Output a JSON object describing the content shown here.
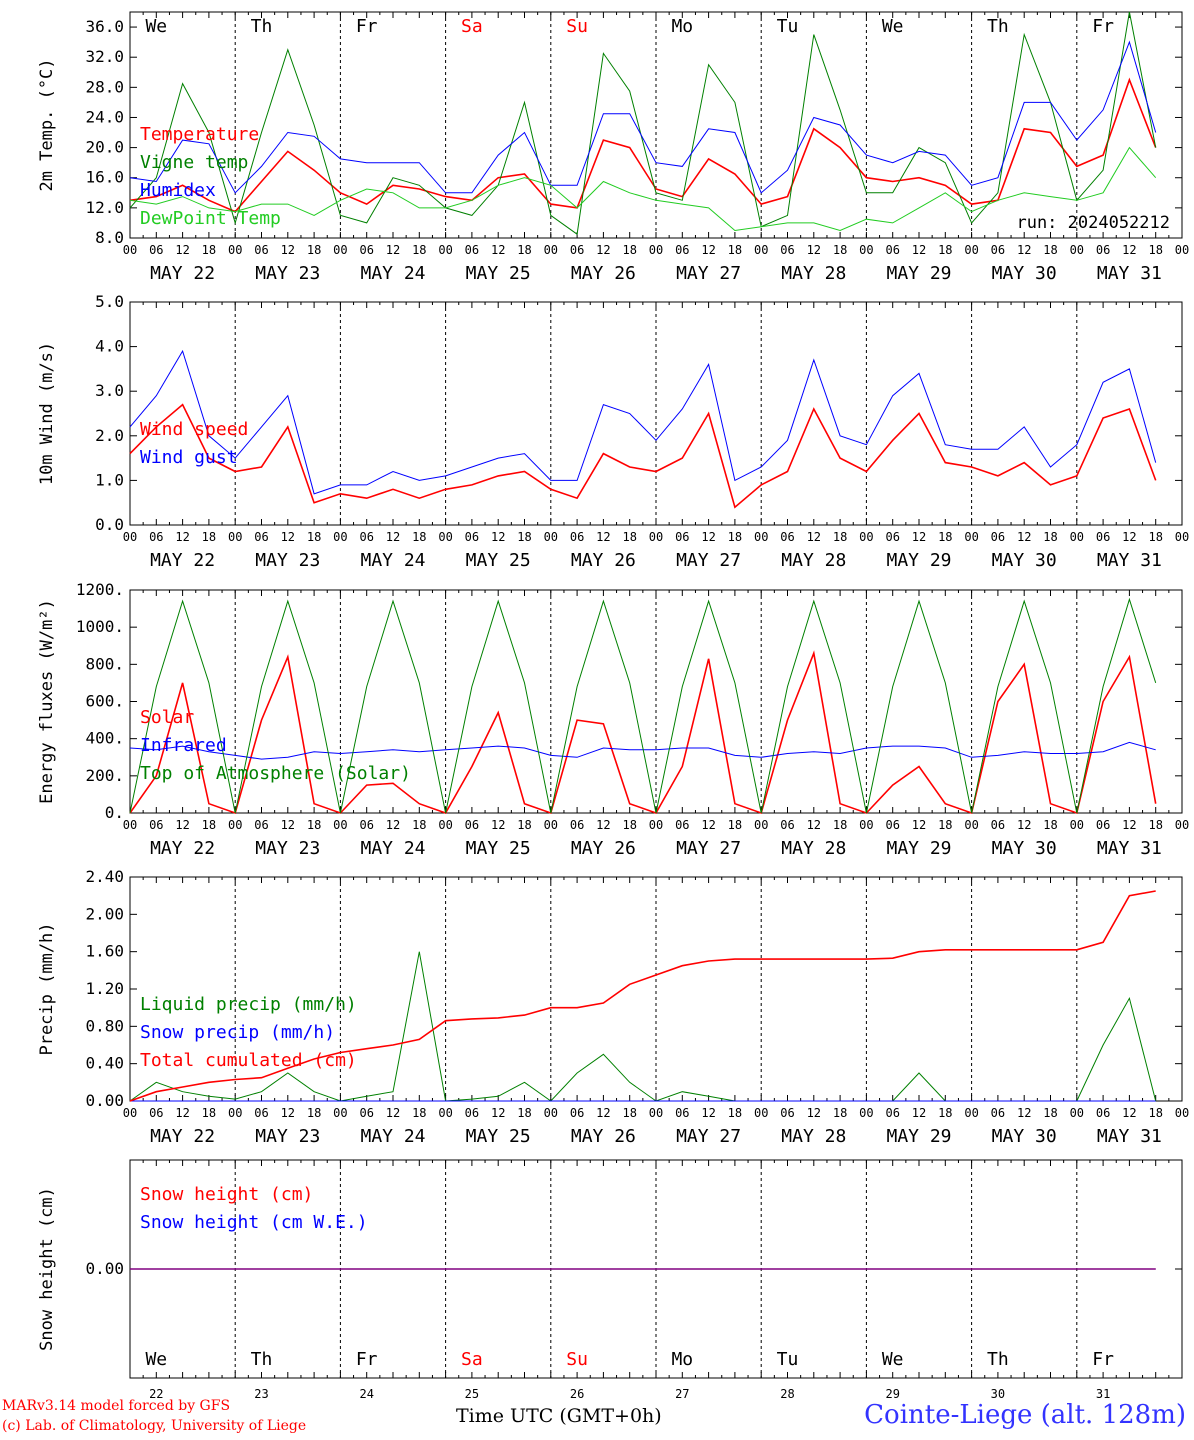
{
  "chart_data": [
    {
      "type": "line",
      "ylabel": "2m Temp. (°C)",
      "ylim": [
        8,
        38
      ],
      "yticks": [
        "8.0",
        "12.0",
        "16.0",
        "20.0",
        "24.0",
        "28.0",
        "32.0",
        "36.0"
      ],
      "annotation": "run: 2024052212",
      "x_hours": [
        0,
        6,
        12,
        18,
        24,
        30,
        36,
        42,
        48,
        54,
        60,
        66,
        72,
        78,
        84,
        90,
        96,
        102,
        108,
        114,
        120,
        126,
        132,
        138,
        144,
        150,
        156,
        162,
        168,
        174,
        180,
        186,
        192,
        198,
        204,
        210,
        216,
        222,
        228,
        234
      ],
      "series": [
        {
          "name": "Temperature",
          "color": "#ff0000",
          "values": [
            13,
            13.5,
            15,
            13,
            11.5,
            15.5,
            19.5,
            17,
            14,
            12.5,
            15,
            14.5,
            13.5,
            13,
            16,
            16.5,
            12.5,
            12,
            21,
            20,
            14.5,
            13.5,
            18.5,
            16.5,
            12.5,
            13.5,
            22.5,
            20,
            16,
            15.5,
            16,
            15,
            12.5,
            13,
            22.5,
            22,
            17.5,
            19,
            29,
            20
          ]
        },
        {
          "name": "Vigne temp",
          "color": "#008000",
          "values": [
            12,
            16,
            28.5,
            22,
            10,
            22,
            33,
            23,
            11,
            10,
            16,
            15,
            12,
            11,
            15,
            26,
            11,
            8.5,
            32.5,
            27.5,
            14,
            13,
            31,
            26,
            9.5,
            11,
            35,
            25,
            14,
            14,
            20,
            18,
            10,
            14,
            35,
            26,
            13,
            17,
            38,
            20
          ]
        },
        {
          "name": "Humidex",
          "color": "#0000ff",
          "values": [
            16,
            15.5,
            21,
            20.5,
            14,
            17.5,
            22,
            21.5,
            18.5,
            18,
            18,
            18,
            14,
            14,
            19,
            22,
            15,
            15,
            24.5,
            24.5,
            18,
            17.5,
            22.5,
            22,
            14,
            17,
            24,
            23,
            19,
            18,
            19.5,
            19,
            15,
            16,
            26,
            26,
            21,
            25,
            34,
            22
          ]
        },
        {
          "name": "DewPoint Temp",
          "color": "#22cc22",
          "values": [
            13,
            12.5,
            13.5,
            12,
            11.5,
            12.5,
            12.5,
            11,
            13,
            14.5,
            14,
            12,
            12,
            13,
            15,
            16,
            15,
            12,
            15.5,
            14,
            13,
            12.5,
            12,
            9,
            9.5,
            10,
            10,
            9,
            10.5,
            10,
            12,
            14,
            11.5,
            13,
            14,
            13.5,
            13,
            14,
            20,
            16
          ]
        }
      ]
    },
    {
      "type": "line",
      "ylabel": "10m Wind (m/s)",
      "ylim": [
        0,
        5
      ],
      "yticks": [
        "0.0",
        "1.0",
        "2.0",
        "3.0",
        "4.0",
        "5.0"
      ],
      "x_hours": [
        0,
        6,
        12,
        18,
        24,
        30,
        36,
        42,
        48,
        54,
        60,
        66,
        72,
        78,
        84,
        90,
        96,
        102,
        108,
        114,
        120,
        126,
        132,
        138,
        144,
        150,
        156,
        162,
        168,
        174,
        180,
        186,
        192,
        198,
        204,
        210,
        216,
        222,
        228,
        234
      ],
      "series": [
        {
          "name": "Wind speed",
          "color": "#ff0000",
          "values": [
            1.6,
            2.2,
            2.7,
            1.5,
            1.2,
            1.3,
            2.2,
            0.5,
            0.7,
            0.6,
            0.8,
            0.6,
            0.8,
            0.9,
            1.1,
            1.2,
            0.8,
            0.6,
            1.6,
            1.3,
            1.2,
            1.5,
            2.5,
            0.4,
            0.9,
            1.2,
            2.6,
            1.5,
            1.2,
            1.9,
            2.5,
            1.4,
            1.3,
            1.1,
            1.4,
            0.9,
            1.1,
            2.4,
            2.6,
            1.0
          ]
        },
        {
          "name": "Wind gust",
          "color": "#0000ff",
          "values": [
            2.2,
            2.9,
            3.9,
            2.0,
            1.5,
            2.2,
            2.9,
            0.7,
            0.9,
            0.9,
            1.2,
            1.0,
            1.1,
            1.3,
            1.5,
            1.6,
            1.0,
            1.0,
            2.7,
            2.5,
            1.9,
            2.6,
            3.6,
            1.0,
            1.3,
            1.9,
            3.7,
            2.0,
            1.8,
            2.9,
            3.4,
            1.8,
            1.7,
            1.7,
            2.2,
            1.3,
            1.8,
            3.2,
            3.5,
            1.4
          ]
        }
      ]
    },
    {
      "type": "line",
      "ylabel": "Energy fluxes (W/m²)",
      "ylim": [
        0,
        1200
      ],
      "yticks": [
        "0.",
        "200.",
        "400.",
        "600.",
        "800.",
        "1000.",
        "1200."
      ],
      "x_hours": [
        0,
        6,
        12,
        18,
        24,
        30,
        36,
        42,
        48,
        54,
        60,
        66,
        72,
        78,
        84,
        90,
        96,
        102,
        108,
        114,
        120,
        126,
        132,
        138,
        144,
        150,
        156,
        162,
        168,
        174,
        180,
        186,
        192,
        198,
        204,
        210,
        216,
        222,
        228,
        234
      ],
      "series": [
        {
          "name": "Solar",
          "color": "#ff0000",
          "values": [
            0,
            200,
            700,
            50,
            0,
            500,
            840,
            50,
            0,
            150,
            160,
            50,
            0,
            250,
            540,
            50,
            0,
            500,
            480,
            50,
            0,
            250,
            830,
            50,
            0,
            500,
            860,
            50,
            0,
            150,
            250,
            50,
            0,
            600,
            800,
            50,
            0,
            600,
            840,
            50
          ]
        },
        {
          "name": "Infrared",
          "color": "#0000ff",
          "values": [
            350,
            340,
            360,
            330,
            310,
            290,
            300,
            330,
            320,
            330,
            340,
            330,
            340,
            350,
            360,
            350,
            310,
            300,
            350,
            340,
            340,
            350,
            350,
            310,
            300,
            320,
            330,
            320,
            350,
            360,
            360,
            350,
            300,
            310,
            330,
            320,
            320,
            330,
            380,
            340
          ]
        },
        {
          "name": "Top of Atmosphere (Solar)",
          "color": "#008000",
          "values": [
            0,
            680,
            1140,
            700,
            0,
            680,
            1140,
            700,
            0,
            680,
            1140,
            700,
            0,
            680,
            1140,
            700,
            0,
            680,
            1140,
            700,
            0,
            680,
            1140,
            700,
            0,
            680,
            1140,
            700,
            0,
            680,
            1140,
            700,
            0,
            680,
            1140,
            700,
            0,
            680,
            1150,
            700
          ]
        }
      ]
    },
    {
      "type": "line",
      "ylabel": "Precip (mm/h)",
      "ylim": [
        0,
        2.4
      ],
      "yticks": [
        "0.00",
        "0.40",
        "0.80",
        "1.20",
        "1.60",
        "2.00",
        "2.40"
      ],
      "x_hours": [
        0,
        6,
        12,
        18,
        24,
        30,
        36,
        42,
        48,
        54,
        60,
        66,
        72,
        78,
        84,
        90,
        96,
        102,
        108,
        114,
        120,
        126,
        132,
        138,
        144,
        150,
        156,
        162,
        168,
        174,
        180,
        186,
        192,
        198,
        204,
        210,
        216,
        222,
        228,
        234
      ],
      "series": [
        {
          "name": "Liquid precip (mm/h)",
          "color": "#008000",
          "values": [
            0,
            0.2,
            0.1,
            0.05,
            0.02,
            0.1,
            0.3,
            0.1,
            0,
            0.05,
            0.1,
            1.6,
            0,
            0.02,
            0.05,
            0.2,
            0,
            0.3,
            0.5,
            0.2,
            0,
            0.1,
            0.05,
            0,
            0,
            0,
            0,
            0,
            0,
            0,
            0.3,
            0,
            0,
            0,
            0,
            0,
            0,
            0.6,
            1.1,
            0
          ]
        },
        {
          "name": "Snow precip (mm/h)",
          "color": "#0000ff",
          "values": [
            0,
            0,
            0,
            0,
            0,
            0,
            0,
            0,
            0,
            0,
            0,
            0,
            0,
            0,
            0,
            0,
            0,
            0,
            0,
            0,
            0,
            0,
            0,
            0,
            0,
            0,
            0,
            0,
            0,
            0,
            0,
            0,
            0,
            0,
            0,
            0,
            0,
            0,
            0,
            0
          ]
        },
        {
          "name": "Total cumulated (cm)",
          "color": "#ff0000",
          "values": [
            0,
            0.1,
            0.15,
            0.2,
            0.23,
            0.25,
            0.35,
            0.45,
            0.52,
            0.56,
            0.6,
            0.66,
            0.86,
            0.88,
            0.89,
            0.92,
            1.0,
            1.0,
            1.05,
            1.25,
            1.35,
            1.45,
            1.5,
            1.52,
            1.52,
            1.52,
            1.52,
            1.52,
            1.52,
            1.53,
            1.6,
            1.62,
            1.62,
            1.62,
            1.62,
            1.62,
            1.62,
            1.7,
            2.2,
            2.25
          ]
        }
      ]
    },
    {
      "type": "line",
      "ylabel": "Snow height (cm)",
      "ylim": [
        -1,
        1
      ],
      "yticks": [
        "0.00"
      ],
      "x_hours": [
        0,
        234
      ],
      "series": [
        {
          "name": "Snow height (cm)",
          "color": "#ff0000",
          "values": [
            0,
            0
          ]
        },
        {
          "name": "Snow height (cm W.E.)",
          "color": "#0000ff",
          "values": [
            0,
            0
          ]
        }
      ]
    }
  ],
  "axis": {
    "hour_ticks": [
      "00",
      "06",
      "12",
      "18"
    ],
    "final_tick": "00",
    "dates": [
      "MAY 22",
      "MAY 23",
      "MAY 24",
      "MAY 25",
      "MAY 26",
      "MAY 27",
      "MAY 28",
      "MAY 29",
      "MAY 30",
      "MAY 31"
    ],
    "days": [
      "We",
      "Th",
      "Fr",
      "Sa",
      "Su",
      "Mo",
      "Tu",
      "We",
      "Th",
      "Fr"
    ],
    "weekend": [
      false,
      false,
      false,
      true,
      true,
      false,
      false,
      false,
      false,
      false
    ],
    "day_numbers": [
      "22",
      "23",
      "24",
      "25",
      "26",
      "27",
      "28",
      "29",
      "30",
      "31"
    ],
    "xlabel": "Time UTC (GMT+0h)"
  },
  "colors": {
    "weekday": "#000000",
    "weekend": "#ff0000",
    "snow_line": "#800080"
  },
  "footer": {
    "model": "MARv3.14 model forced by GFS",
    "credit": "(c) Lab. of Climatology, University of Liege",
    "station": "Cointe-Liege (alt. 128m)"
  }
}
